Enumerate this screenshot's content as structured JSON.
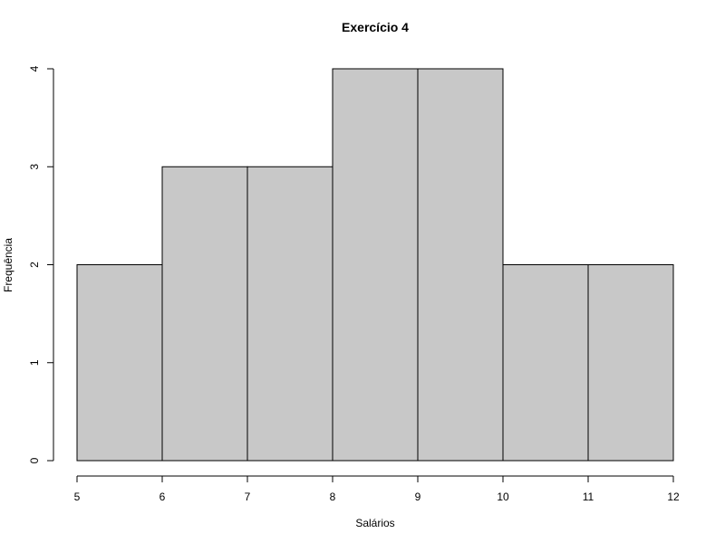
{
  "chart_data": {
    "type": "bar",
    "histogram": true,
    "title": "Exercício 4",
    "xlabel": "Salários",
    "ylabel": "Frequência",
    "bins": [
      {
        "from": 5,
        "to": 6,
        "count": 2
      },
      {
        "from": 6,
        "to": 7,
        "count": 3
      },
      {
        "from": 7,
        "to": 8,
        "count": 3
      },
      {
        "from": 8,
        "to": 9,
        "count": 4
      },
      {
        "from": 9,
        "to": 10,
        "count": 4
      },
      {
        "from": 10,
        "to": 11,
        "count": 2
      },
      {
        "from": 11,
        "to": 12,
        "count": 2
      }
    ],
    "xlim": [
      5,
      12
    ],
    "ylim": [
      0,
      4
    ],
    "x_ticks": [
      "5",
      "6",
      "7",
      "8",
      "9",
      "10",
      "11",
      "12"
    ],
    "y_ticks": [
      "0",
      "1",
      "2",
      "3",
      "4"
    ],
    "bar_color": "#c8c8c8",
    "border_color": "#000000",
    "grid": false,
    "legend": "none"
  }
}
